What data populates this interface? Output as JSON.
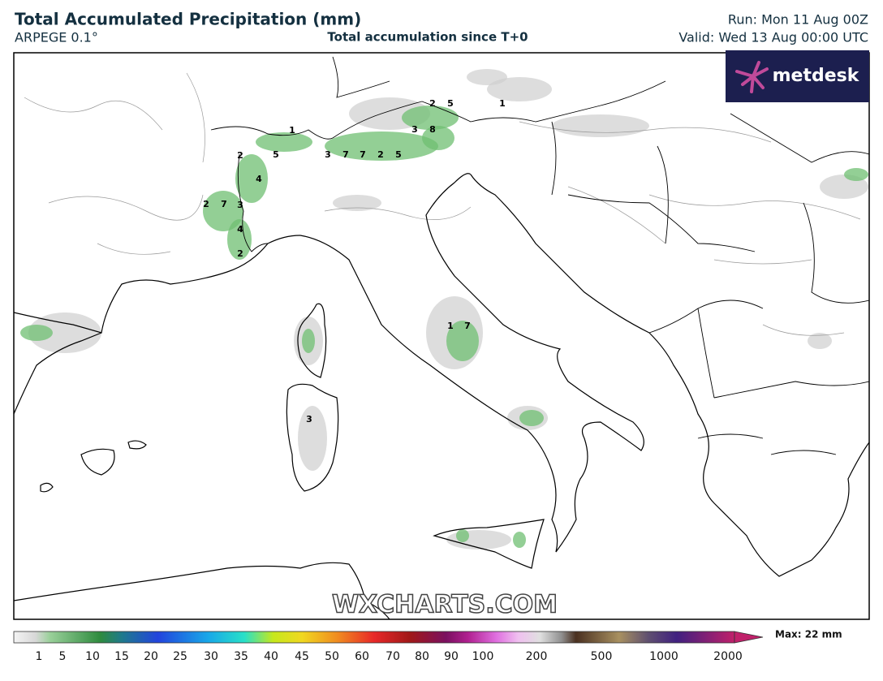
{
  "header": {
    "title": "Total Accumulated Precipitation (mm)",
    "model": "ARPEGE 0.1°",
    "subtitle": "Total accumulation since T+0",
    "run": "Run: Mon 11 Aug 00Z",
    "valid": "Valid: Wed 13 Aug 00:00 UTC"
  },
  "logo": {
    "text": "metdesk"
  },
  "watermark": "WXCHARTS.COM",
  "map_labels": [
    1,
    5,
    2,
    4,
    2,
    7,
    3,
    4,
    2,
    3,
    7,
    7,
    2,
    5,
    3,
    8,
    2,
    5,
    1,
    1,
    7,
    3
  ],
  "colorbar": {
    "ticks": [
      1,
      5,
      10,
      15,
      20,
      25,
      30,
      35,
      40,
      45,
      50,
      60,
      70,
      80,
      90,
      100,
      200,
      500,
      1000,
      2000
    ],
    "max_label": "Max: 22 mm"
  }
}
